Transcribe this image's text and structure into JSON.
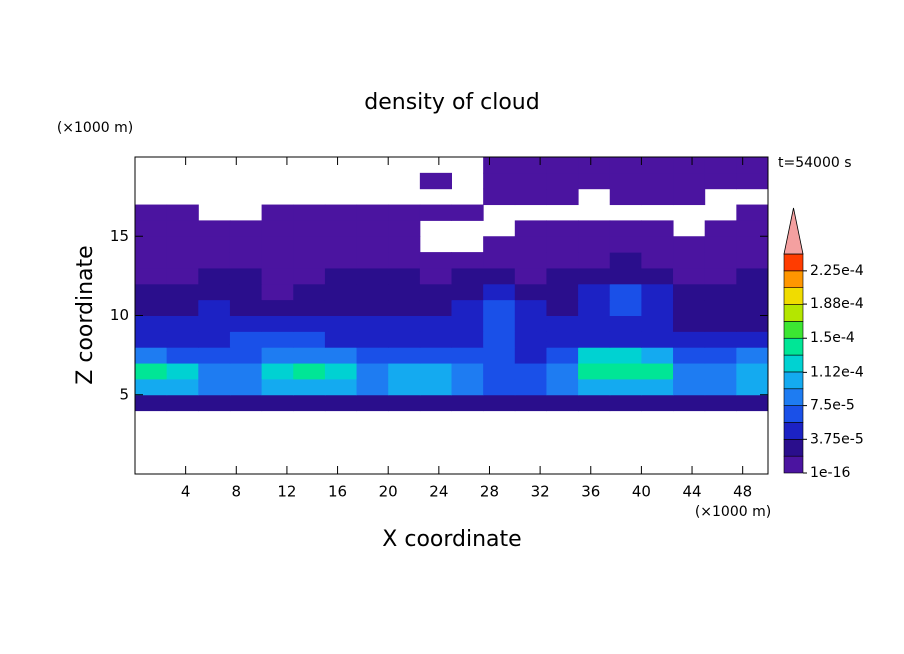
{
  "chart_data": {
    "type": "contour",
    "title": "density of cloud",
    "xlabel": "X coordinate",
    "ylabel": "Z coordinate",
    "x_unit": "(×1000 m)",
    "y_unit": "(×1000 m)",
    "annotation": "t=54000 s",
    "xlim": [
      0,
      50
    ],
    "ylim": [
      0,
      20
    ],
    "xticks": [
      4,
      8,
      12,
      16,
      20,
      24,
      28,
      32,
      36,
      40,
      44,
      48
    ],
    "yticks": [
      5,
      10,
      15
    ],
    "x": [
      1.25,
      3.75,
      6.25,
      8.75,
      11.25,
      13.75,
      16.25,
      18.75,
      21.25,
      23.75,
      26.25,
      28.75,
      31.25,
      33.75,
      36.25,
      38.75,
      41.25,
      43.75,
      46.25,
      48.75
    ],
    "y": [
      4.5,
      5.5,
      6.5,
      7.5,
      8.5,
      9.5,
      10.5,
      11.5,
      12.5,
      13.5,
      14.5,
      15.5,
      16.5,
      17.5,
      18.5,
      19.5
    ],
    "z": [
      [
        2.8e-05,
        2.8e-05,
        2.8e-05,
        2.8e-05,
        2.8e-05,
        2.8e-05,
        2.8e-05,
        2.8e-05,
        2.8e-05,
        2.8e-05,
        2.8e-05,
        2.8e-05,
        2.8e-05,
        2.8e-05,
        2.8e-05,
        2.8e-05,
        2.8e-05,
        2.8e-05,
        2.8e-05,
        2.8e-05
      ],
      [
        0.000103,
        0.000103,
        8.4e-05,
        8.4e-05,
        0.000103,
        0.000103,
        0.000103,
        8.4e-05,
        0.000103,
        0.000103,
        8.4e-05,
        6.5e-05,
        6.5e-05,
        8.4e-05,
        0.000103,
        0.000103,
        0.000103,
        8.4e-05,
        8.4e-05,
        0.000103
      ],
      [
        0.00014,
        0.000122,
        8.4e-05,
        8.4e-05,
        0.000122,
        0.00014,
        0.000122,
        8.4e-05,
        0.000103,
        0.000103,
        8.4e-05,
        6.5e-05,
        6.5e-05,
        8.4e-05,
        0.00014,
        0.00014,
        0.00014,
        8.4e-05,
        8.4e-05,
        0.000103
      ],
      [
        8.4e-05,
        6.5e-05,
        6.5e-05,
        6.5e-05,
        8.4e-05,
        8.4e-05,
        8.4e-05,
        6.5e-05,
        6.5e-05,
        6.5e-05,
        6.5e-05,
        6.5e-05,
        4.7e-05,
        6.5e-05,
        0.000122,
        0.000122,
        0.000103,
        6.5e-05,
        6.5e-05,
        8.4e-05
      ],
      [
        4.7e-05,
        4.7e-05,
        4.7e-05,
        6.5e-05,
        6.5e-05,
        6.5e-05,
        4.7e-05,
        4.7e-05,
        4.7e-05,
        4.7e-05,
        4.7e-05,
        6.5e-05,
        4.7e-05,
        4.7e-05,
        4.7e-05,
        4.7e-05,
        4.7e-05,
        4.7e-05,
        4.7e-05,
        4.7e-05
      ],
      [
        4.7e-05,
        4.7e-05,
        4.7e-05,
        4.7e-05,
        4.7e-05,
        4.7e-05,
        4.7e-05,
        4.7e-05,
        4.7e-05,
        4.7e-05,
        4.7e-05,
        6.5e-05,
        4.7e-05,
        4.7e-05,
        4.7e-05,
        4.7e-05,
        4.7e-05,
        2.8e-05,
        2.8e-05,
        2.8e-05
      ],
      [
        2.8e-05,
        2.8e-05,
        4.7e-05,
        2.8e-05,
        2.8e-05,
        2.8e-05,
        2.8e-05,
        2.8e-05,
        2.8e-05,
        2.8e-05,
        4.7e-05,
        6.5e-05,
        4.7e-05,
        2.8e-05,
        4.7e-05,
        6.5e-05,
        4.7e-05,
        2.8e-05,
        2.8e-05,
        2.8e-05
      ],
      [
        2.8e-05,
        2.8e-05,
        2.8e-05,
        2.8e-05,
        1e-05,
        2.8e-05,
        2.8e-05,
        2.8e-05,
        2.8e-05,
        2.8e-05,
        2.8e-05,
        4.7e-05,
        2.8e-05,
        2.8e-05,
        4.7e-05,
        6.5e-05,
        4.7e-05,
        2.8e-05,
        2.8e-05,
        2.8e-05
      ],
      [
        1e-05,
        1e-05,
        2.8e-05,
        2.8e-05,
        1e-05,
        1e-05,
        2.8e-05,
        2.8e-05,
        2.8e-05,
        1e-05,
        2.8e-05,
        2.8e-05,
        1e-05,
        2.8e-05,
        2.8e-05,
        2.8e-05,
        2.8e-05,
        1e-05,
        1e-05,
        2.8e-05
      ],
      [
        1e-05,
        1e-05,
        1e-05,
        1e-05,
        1e-05,
        1e-05,
        1e-05,
        1e-05,
        1e-05,
        1e-05,
        1e-05,
        1e-05,
        1e-05,
        1e-05,
        1e-05,
        2.8e-05,
        1e-05,
        1e-05,
        1e-05,
        1e-05
      ],
      [
        1e-05,
        1e-05,
        1e-05,
        1e-05,
        1e-05,
        1e-05,
        1e-05,
        1e-05,
        1e-05,
        null,
        null,
        1e-05,
        1e-05,
        1e-05,
        1e-05,
        1e-05,
        1e-05,
        1e-05,
        1e-05,
        1e-05
      ],
      [
        1e-05,
        1e-05,
        1e-05,
        1e-05,
        1e-05,
        1e-05,
        1e-05,
        1e-05,
        1e-05,
        null,
        null,
        null,
        1e-05,
        1e-05,
        1e-05,
        1e-05,
        1e-05,
        null,
        1e-05,
        1e-05
      ],
      [
        1e-05,
        1e-05,
        null,
        null,
        1e-05,
        1e-05,
        1e-05,
        1e-05,
        1e-05,
        1e-05,
        1e-05,
        null,
        null,
        null,
        null,
        null,
        null,
        null,
        null,
        1e-05
      ],
      [
        null,
        null,
        null,
        null,
        null,
        null,
        null,
        null,
        null,
        null,
        null,
        1e-05,
        1e-05,
        1e-05,
        null,
        1e-05,
        1e-05,
        1e-05,
        null,
        null
      ],
      [
        null,
        null,
        null,
        null,
        null,
        null,
        null,
        null,
        null,
        1e-05,
        null,
        1e-05,
        1e-05,
        1e-05,
        1e-05,
        1e-05,
        1e-05,
        1e-05,
        1e-05,
        1e-05
      ],
      [
        null,
        null,
        null,
        null,
        null,
        null,
        null,
        null,
        null,
        null,
        null,
        1e-05,
        1e-05,
        1e-05,
        1e-05,
        1e-05,
        1e-05,
        1e-05,
        1e-05,
        1e-05
      ]
    ],
    "levels": [
      1e-16,
      1.875e-05,
      3.75e-05,
      5.625e-05,
      7.5e-05,
      9.375e-05,
      0.0001125,
      0.00013125,
      0.00015,
      0.00016875,
      0.0001875,
      0.00020625,
      0.000225,
      0.00024375
    ],
    "colors": [
      "#4b14a0",
      "#2a0e8c",
      "#1c22c4",
      "#1a50e8",
      "#1e7cf2",
      "#14aaf0",
      "#00d2d2",
      "#00e696",
      "#3ce632",
      "#b4e600",
      "#f0dc00",
      "#ff9600",
      "#ff3c00"
    ],
    "extend_color": "#f4a0a0",
    "colorbar_ticks": [
      {
        "value": 1e-16,
        "label": "1e-16"
      },
      {
        "value": 3.75e-05,
        "label": "3.75e-5"
      },
      {
        "value": 7.5e-05,
        "label": "7.5e-5"
      },
      {
        "value": 0.000112,
        "label": "1.12e-4"
      },
      {
        "value": 0.00015,
        "label": "1.5e-4"
      },
      {
        "value": 0.000188,
        "label": "1.88e-4"
      },
      {
        "value": 0.000225,
        "label": "2.25e-4"
      }
    ]
  }
}
